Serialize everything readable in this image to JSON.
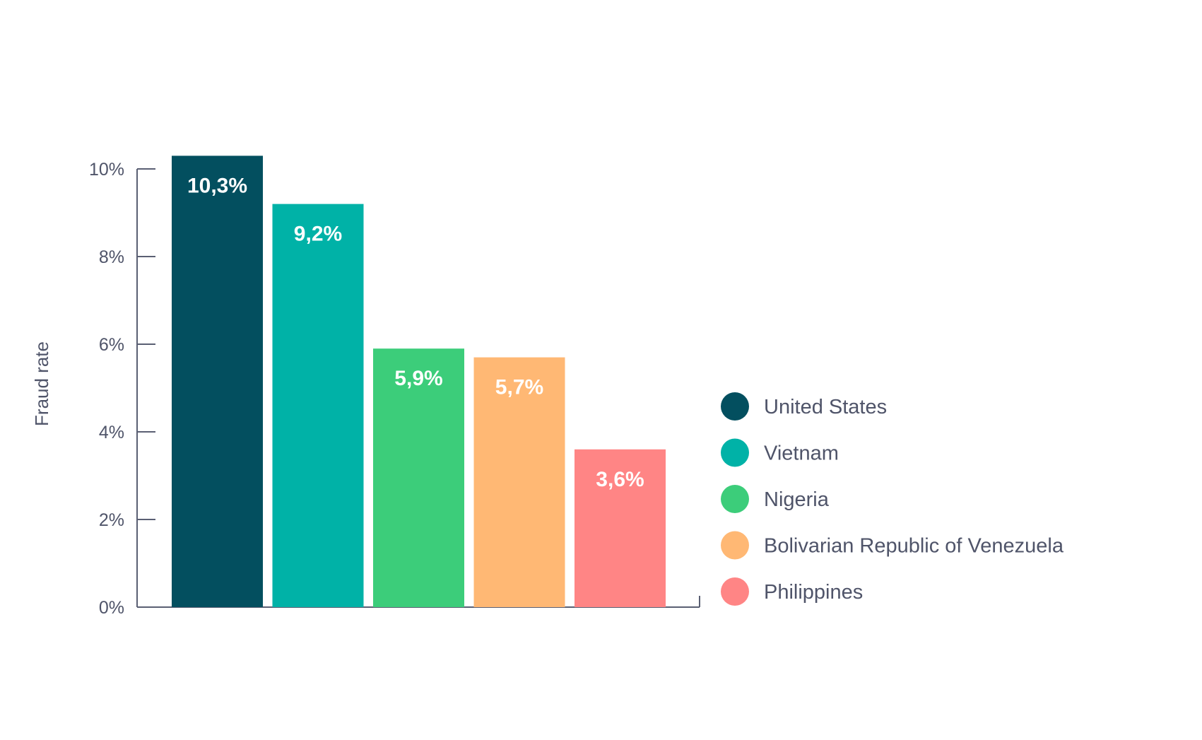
{
  "chart_data": {
    "type": "bar",
    "ylabel": "Fraud rate",
    "ylim": [
      0,
      10
    ],
    "yticks": [
      {
        "value": 0,
        "label": "0%"
      },
      {
        "value": 2,
        "label": "2%"
      },
      {
        "value": 4,
        "label": "4%"
      },
      {
        "value": 6,
        "label": "6%"
      },
      {
        "value": 8,
        "label": "8%"
      },
      {
        "value": 10,
        "label": "10%"
      }
    ],
    "categories": [
      "United States",
      "Vietnam",
      "Nigeria",
      "Bolivarian Republic of Venezuela",
      "Philippines"
    ],
    "values": [
      10.3,
      9.2,
      5.9,
      5.7,
      3.6
    ],
    "value_labels": [
      "10,3%",
      "9,2%",
      "5,9%",
      "5,7%",
      "3,6%"
    ],
    "colors": [
      "#034f5f",
      "#00b2a7",
      "#3ccd7a",
      "#ffb874",
      "#ff8585"
    ],
    "legend": {
      "position": "right",
      "entries": [
        "United States",
        "Vietnam",
        "Nigeria",
        "Bolivarian Republic of Venezuela",
        "Philippines"
      ]
    },
    "grid": false
  }
}
